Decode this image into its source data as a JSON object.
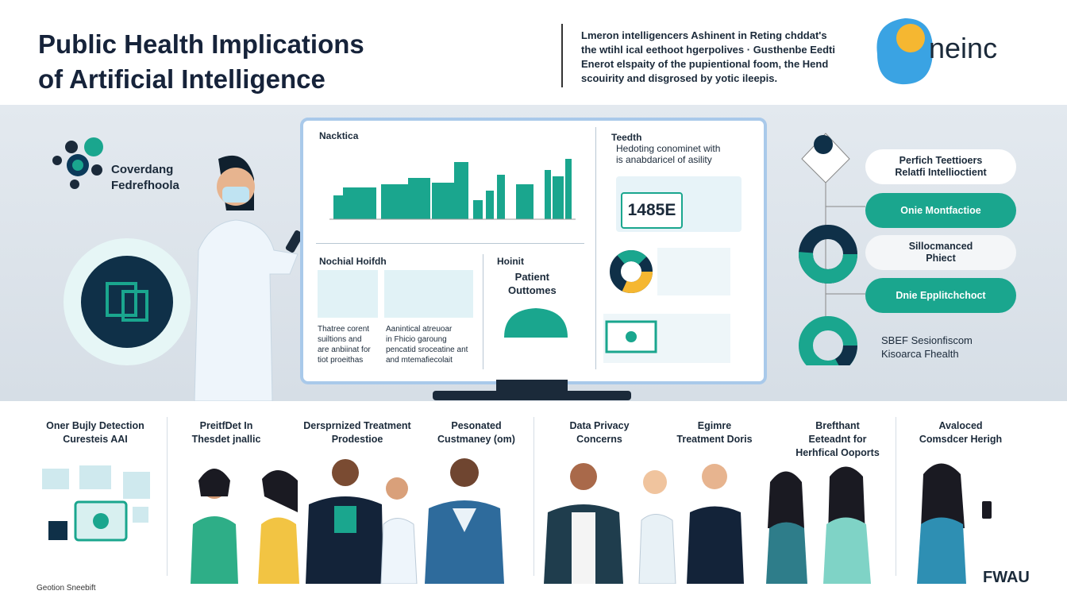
{
  "header": {
    "title": [
      "Public Health Implications",
      "of Artificial Intelligence"
    ],
    "intro": [
      "Lmeron intelligencers Ashinent in Reting chddat's",
      "the wtihl ical eethoot hgerpolives · Gusthenbe Eedti",
      "Enerot elspaity of the pupientional foom, the Hend",
      "scouirity and disgrosed by yotic ileepis."
    ],
    "logo": "neinc"
  },
  "left_badge": [
    "Coverdang",
    "Fedrefhoola"
  ],
  "dashboard": {
    "chart_title": "Nacktica",
    "side_title": "Teedth",
    "side_lines": [
      "Hedoting conominet with",
      "is anabdaricel of asility"
    ],
    "counter": "1485E",
    "section2_title": "Nochial Hoifdh",
    "section2_texts": [
      [
        "Thatree corent",
        "suiltions and",
        "are anbiinat for",
        "tiot proeithas"
      ],
      [
        "Aanintical atreuoar",
        "in Fhicio garoung",
        "pencatid sroceatine ant",
        "and mtemafiecolait"
      ]
    ],
    "section3_title": "Hoinit",
    "section3_sub": [
      "Patient",
      "Outtomes"
    ]
  },
  "right_panel": {
    "items": [
      [
        "Perfich Teettioers",
        "Relatfi Intellioctient"
      ],
      [
        "Onie Montfactioe"
      ],
      [
        "Sillocmanced",
        "Phiect"
      ],
      [
        "Dnie Epplitchchoct"
      ]
    ],
    "bottom_lines": [
      "SBEF Sesionfiscom",
      "Kisoarca Fhealth"
    ]
  },
  "bottom": {
    "items": [
      [
        "Oner Bujly Detection",
        "Curesteis AAI"
      ],
      [
        "PreitfDet In",
        "Thesdet jnallic"
      ],
      [
        "Dersprnized Treatment",
        "Prodestioe"
      ],
      [
        "Pesonated",
        "Custmaney (om)"
      ],
      [
        "Data Privacy",
        "Concerns"
      ],
      [
        "Egimre",
        "Treatment Doris"
      ],
      [
        "Brefthant",
        "Eeteadnt for",
        "Herhfical Ooports"
      ],
      [
        "Avaloced",
        "Comsdcer Herigh"
      ]
    ],
    "footer_left": "Geotion Sneebift",
    "footer_right": "FWAU"
  }
}
